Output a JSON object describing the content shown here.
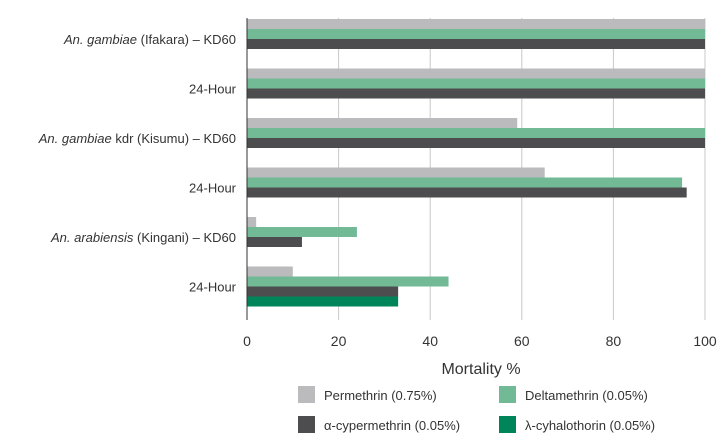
{
  "chart_data": {
    "type": "bar",
    "orientation": "horizontal",
    "categories": [
      {
        "id": "gambiae-ifakara-kd60",
        "parts": [
          {
            "text": "An. gambiae",
            "italic": true
          },
          {
            "text": " (Ifakara) – KD60",
            "italic": false
          }
        ]
      },
      {
        "id": "gambiae-ifakara-24h",
        "parts": [
          {
            "text": "24-Hour",
            "italic": false
          }
        ]
      },
      {
        "id": "gambiae-kdr-kd60",
        "parts": [
          {
            "text": "An. gambiae",
            "italic": true
          },
          {
            "text": " kdr (Kisumu) – KD60",
            "italic": false
          }
        ]
      },
      {
        "id": "gambiae-kdr-24h",
        "parts": [
          {
            "text": "24-Hour",
            "italic": false
          }
        ]
      },
      {
        "id": "arabiensis-kd60",
        "parts": [
          {
            "text": "An. arabiensis",
            "italic": true
          },
          {
            "text": " (Kingani) – KD60",
            "italic": false
          }
        ]
      },
      {
        "id": "arabiensis-24h",
        "parts": [
          {
            "text": "24-Hour",
            "italic": false
          }
        ]
      }
    ],
    "series": [
      {
        "name": "Permethrin (0.75%)",
        "color": "#bbbabc",
        "values": [
          100,
          100,
          59,
          65,
          2,
          10
        ]
      },
      {
        "name": "Deltamethrin (0.05%)",
        "color": "#72b996",
        "values": [
          100,
          100,
          100,
          95,
          24,
          44
        ]
      },
      {
        "name": "α-cypermethrin (0.05%)",
        "color": "#4d4d4f",
        "values": [
          100,
          100,
          100,
          96,
          12,
          33
        ]
      },
      {
        "name": "λ-cyhalothorin (0.05%)",
        "color": "#00855a",
        "values": [
          null,
          null,
          null,
          null,
          null,
          33
        ]
      }
    ],
    "xlabel": "Mortality %",
    "xlim": [
      0,
      100
    ],
    "xticks": [
      "0",
      "20",
      "40",
      "60",
      "80",
      "100"
    ],
    "grid": "vertical",
    "legend_position": "bottom"
  }
}
